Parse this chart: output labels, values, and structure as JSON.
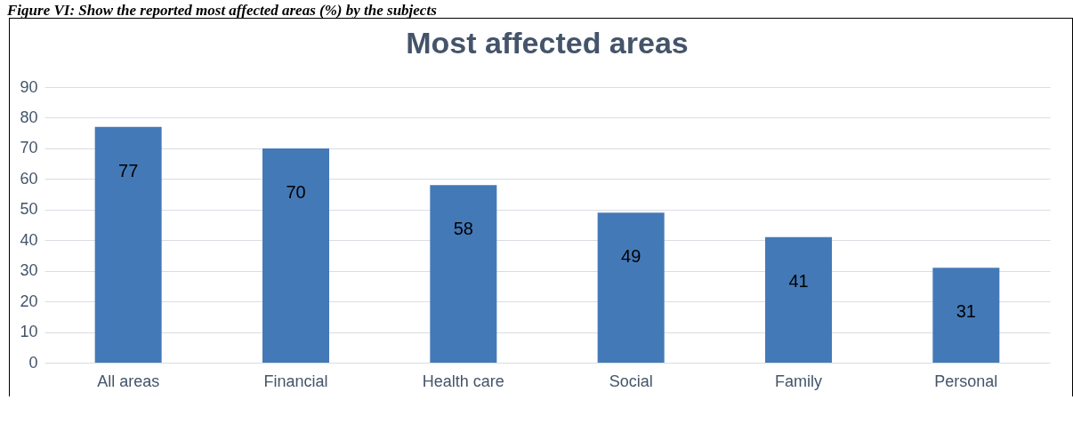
{
  "chart_data": {
    "type": "bar",
    "title": "Most affected areas",
    "annotations": [
      "Figure VI: Show the reported most affected areas (%) by the subjects"
    ],
    "categories": [
      "All areas",
      "Financial",
      "Health care",
      "Social",
      "Family",
      "Personal"
    ],
    "values": [
      77,
      70,
      58,
      49,
      41,
      31
    ],
    "color": "#4479b7",
    "ylim": [
      0,
      90
    ],
    "yticks": [
      0,
      10,
      20,
      30,
      40,
      50,
      60,
      70,
      80,
      90
    ],
    "grid": "y",
    "data_labels": true
  }
}
